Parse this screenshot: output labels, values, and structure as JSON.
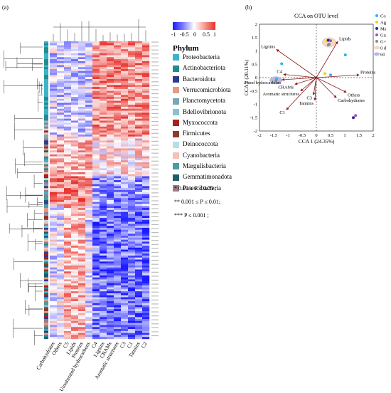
{
  "panel_a_label": "(a)",
  "panel_b_label": "(b)",
  "colorbar": {
    "ticks": [
      "-1",
      "-0.5",
      "0",
      "0.5",
      "1"
    ],
    "low_color": "#1a1aff",
    "mid_color": "#ffffff",
    "high_color": "#e8302a"
  },
  "phylum_title": "Phylum",
  "phyla": [
    {
      "name": "Proteobacteria",
      "color": "#3bb3c9"
    },
    {
      "name": "Actinobacteriota",
      "color": "#238b8b"
    },
    {
      "name": "Bacteroidota",
      "color": "#2e3a8c"
    },
    {
      "name": "Verrucomicrobiota",
      "color": "#e89a80"
    },
    {
      "name": "Planctomycetota",
      "color": "#7aa7b5"
    },
    {
      "name": "Bdellovibrionota",
      "color": "#8ac2d0"
    },
    {
      "name": "Myxococcota",
      "color": "#a6201c"
    },
    {
      "name": "Firmicutes",
      "color": "#8c3b2e"
    },
    {
      "name": "Deinococcota",
      "color": "#b9dde6"
    },
    {
      "name": "Cyanobacteria",
      "color": "#f4c2b6"
    },
    {
      "name": "Margulisbacteria",
      "color": "#4a9aa8"
    },
    {
      "name": "Gemmatimonadota",
      "color": "#1c5e6e"
    },
    {
      "name": "Patescibacteria",
      "color": "#9a7c87"
    }
  ],
  "significance": [
    "*     0.01 ≤ P ≤ 0.05 ;",
    "**    0.001 ≤ P ≤ 0.01;",
    "***  P ≤ 0.001 ;"
  ],
  "heatmap_columns": [
    "Carbohydrates",
    "Others",
    "C5",
    "Lipids",
    "Proteins",
    "Unsaturated hydrocarbons",
    "C4",
    "Lignins",
    "CRAMs",
    "Aromatic structures",
    "C3",
    "C1",
    "Tannins",
    "C2"
  ],
  "chart_data": [
    {
      "type": "heatmap",
      "title": "",
      "columns": [
        "Carbohydrates",
        "Others",
        "C5",
        "Lipids",
        "Proteins",
        "Unsaturated hydrocarbons",
        "C4",
        "Lignins",
        "CRAMs",
        "Aromatic structures",
        "C3",
        "C1",
        "Tannins",
        "C2"
      ],
      "value_range": [
        -1,
        1
      ],
      "row_count": 150,
      "note_rows": "OTU rows colored by correlation; row labels too small to read"
    },
    {
      "type": "scatter",
      "title": "CCA  on OTU level",
      "xlabel": "CCA 1 (24.35%)",
      "ylabel": "CCA 2 (20.11%)",
      "xlim": [
        -2,
        2
      ],
      "ylim": [
        -2,
        2
      ],
      "xticks": [
        "-2",
        "-1.5",
        "-1",
        "-0.5",
        "0",
        "0.5",
        "1",
        "1.5",
        "2"
      ],
      "yticks": [
        "-2",
        "-1.5",
        "-1",
        "-0.5",
        "0",
        "0.5",
        "1",
        "1.5",
        "2"
      ],
      "legend_position": "right",
      "groups": [
        {
          "name": "Control",
          "color": "#29b6e8",
          "points": [
            [
              -1.22,
              0.52
            ],
            [
              0.42,
              1.22
            ],
            [
              1.02,
              0.85
            ],
            [
              0.5,
              0.1
            ],
            [
              -1.4,
              -0.05
            ]
          ]
        },
        {
          "name": "Agale",
          "color": "#e8d21a",
          "points": [
            [
              0.38,
              1.38
            ],
            [
              0.3,
              0.15
            ]
          ]
        },
        {
          "name": "Manure",
          "color": "#2a2a9a",
          "points": [
            [
              0.42,
              1.4
            ],
            [
              1.3,
              -1.5
            ]
          ]
        },
        {
          "name": "Grass",
          "color": "#a050c8",
          "points": [
            [
              0.5,
              1.38
            ],
            [
              1.38,
              -1.42
            ]
          ]
        },
        {
          "name": "G+M",
          "color": "#8a8a8a",
          "points": [
            [
              0.45,
              1.25
            ],
            [
              -1.42,
              -0.12
            ]
          ]
        }
      ],
      "ellipses": [
        {
          "name": "0 day",
          "color": "#f4d8c4",
          "center": [
            0.45,
            1.32
          ],
          "rx": 0.25,
          "ry": 0.18
        },
        {
          "name": "60 day",
          "color": "#b8b8e6",
          "center": [
            -1.42,
            -0.1
          ],
          "rx": 0.22,
          "ry": 0.14
        }
      ],
      "vectors": [
        {
          "name": "Lipids",
          "x": 0.75,
          "y": 1.35
        },
        {
          "name": "Lignins",
          "x": -1.4,
          "y": 1.05
        },
        {
          "name": "Proteins",
          "x": 1.5,
          "y": 0.1
        },
        {
          "name": "C4",
          "x": -1.15,
          "y": 0.12
        },
        {
          "name": "Unsaturated hydrocarbons",
          "x": -1.2,
          "y": -0.08
        },
        {
          "name": "CRAMs",
          "x": -0.75,
          "y": -0.25
        },
        {
          "name": "Aromatic structures",
          "x": -0.55,
          "y": -0.5
        },
        {
          "name": "C3",
          "x": -0.1,
          "y": -0.65
        },
        {
          "name": "Others",
          "x": 1.05,
          "y": -0.55
        },
        {
          "name": "Carbohydrates",
          "x": 0.7,
          "y": -0.75
        },
        {
          "name": "Tannins",
          "x": -0.05,
          "y": -0.85
        },
        {
          "name": "C1",
          "x": -1.05,
          "y": -1.2
        }
      ]
    }
  ]
}
